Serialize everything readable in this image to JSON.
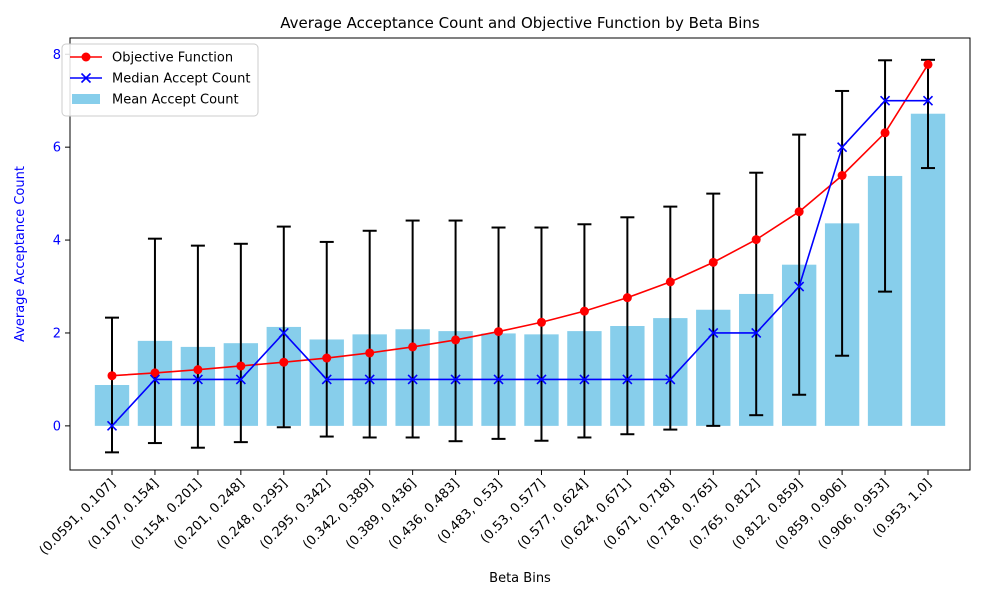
{
  "chart_data": {
    "type": "bar",
    "title": "Average Acceptance Count and Objective Function by Beta Bins",
    "xlabel": "Beta Bins",
    "ylabel": "Average Acceptance Count",
    "ylim": [
      -0.95,
      8.35
    ],
    "yticks": [
      0,
      2,
      4,
      6,
      8
    ],
    "legend_position": "top-left",
    "colors": {
      "bar": "#87ceeb",
      "objective": "#ff0000",
      "median": "#0000ff",
      "errorbar": "#000000",
      "ylabel": "#0000ff"
    },
    "categories": [
      "(0.0591, 0.107]",
      "(0.107, 0.154]",
      "(0.154, 0.201]",
      "(0.201, 0.248]",
      "(0.248, 0.295]",
      "(0.295, 0.342]",
      "(0.342, 0.389]",
      "(0.389, 0.436]",
      "(0.436, 0.483]",
      "(0.483, 0.53]",
      "(0.53, 0.577]",
      "(0.577, 0.624]",
      "(0.624, 0.671]",
      "(0.671, 0.718]",
      "(0.718, 0.765]",
      "(0.765, 0.812]",
      "(0.812, 0.859]",
      "(0.859, 0.906]",
      "(0.906, 0.953]",
      "(0.953, 1.0]"
    ],
    "series": [
      {
        "name": "Mean Accept Count",
        "kind": "bar",
        "values": [
          0.88,
          1.83,
          1.7,
          1.78,
          2.13,
          1.86,
          1.97,
          2.08,
          2.04,
          1.99,
          1.97,
          2.04,
          2.15,
          2.32,
          2.5,
          2.84,
          3.47,
          4.36,
          5.38,
          6.72
        ],
        "error_low": [
          -0.57,
          -0.37,
          -0.47,
          -0.35,
          -0.03,
          -0.23,
          -0.25,
          -0.25,
          -0.33,
          -0.28,
          -0.32,
          -0.25,
          -0.18,
          -0.08,
          0.0,
          0.23,
          0.67,
          1.51,
          2.89,
          5.55
        ],
        "error_high": [
          2.33,
          4.03,
          3.88,
          3.92,
          4.29,
          3.96,
          4.2,
          4.42,
          4.42,
          4.27,
          4.27,
          4.34,
          4.49,
          4.72,
          5.0,
          5.45,
          6.27,
          7.21,
          7.87,
          7.88
        ]
      },
      {
        "name": "Objective Function",
        "kind": "line",
        "marker": "o",
        "values": [
          1.08,
          1.14,
          1.21,
          1.29,
          1.37,
          1.46,
          1.57,
          1.7,
          1.85,
          2.03,
          2.23,
          2.47,
          2.76,
          3.1,
          3.52,
          4.01,
          4.61,
          5.39,
          6.31,
          7.78
        ]
      },
      {
        "name": "Median Accept Count",
        "kind": "line",
        "marker": "x",
        "values": [
          0,
          1,
          1,
          1,
          2,
          1,
          1,
          1,
          1,
          1,
          1,
          1,
          1,
          1,
          2,
          2,
          3,
          6,
          7,
          7
        ]
      }
    ]
  }
}
